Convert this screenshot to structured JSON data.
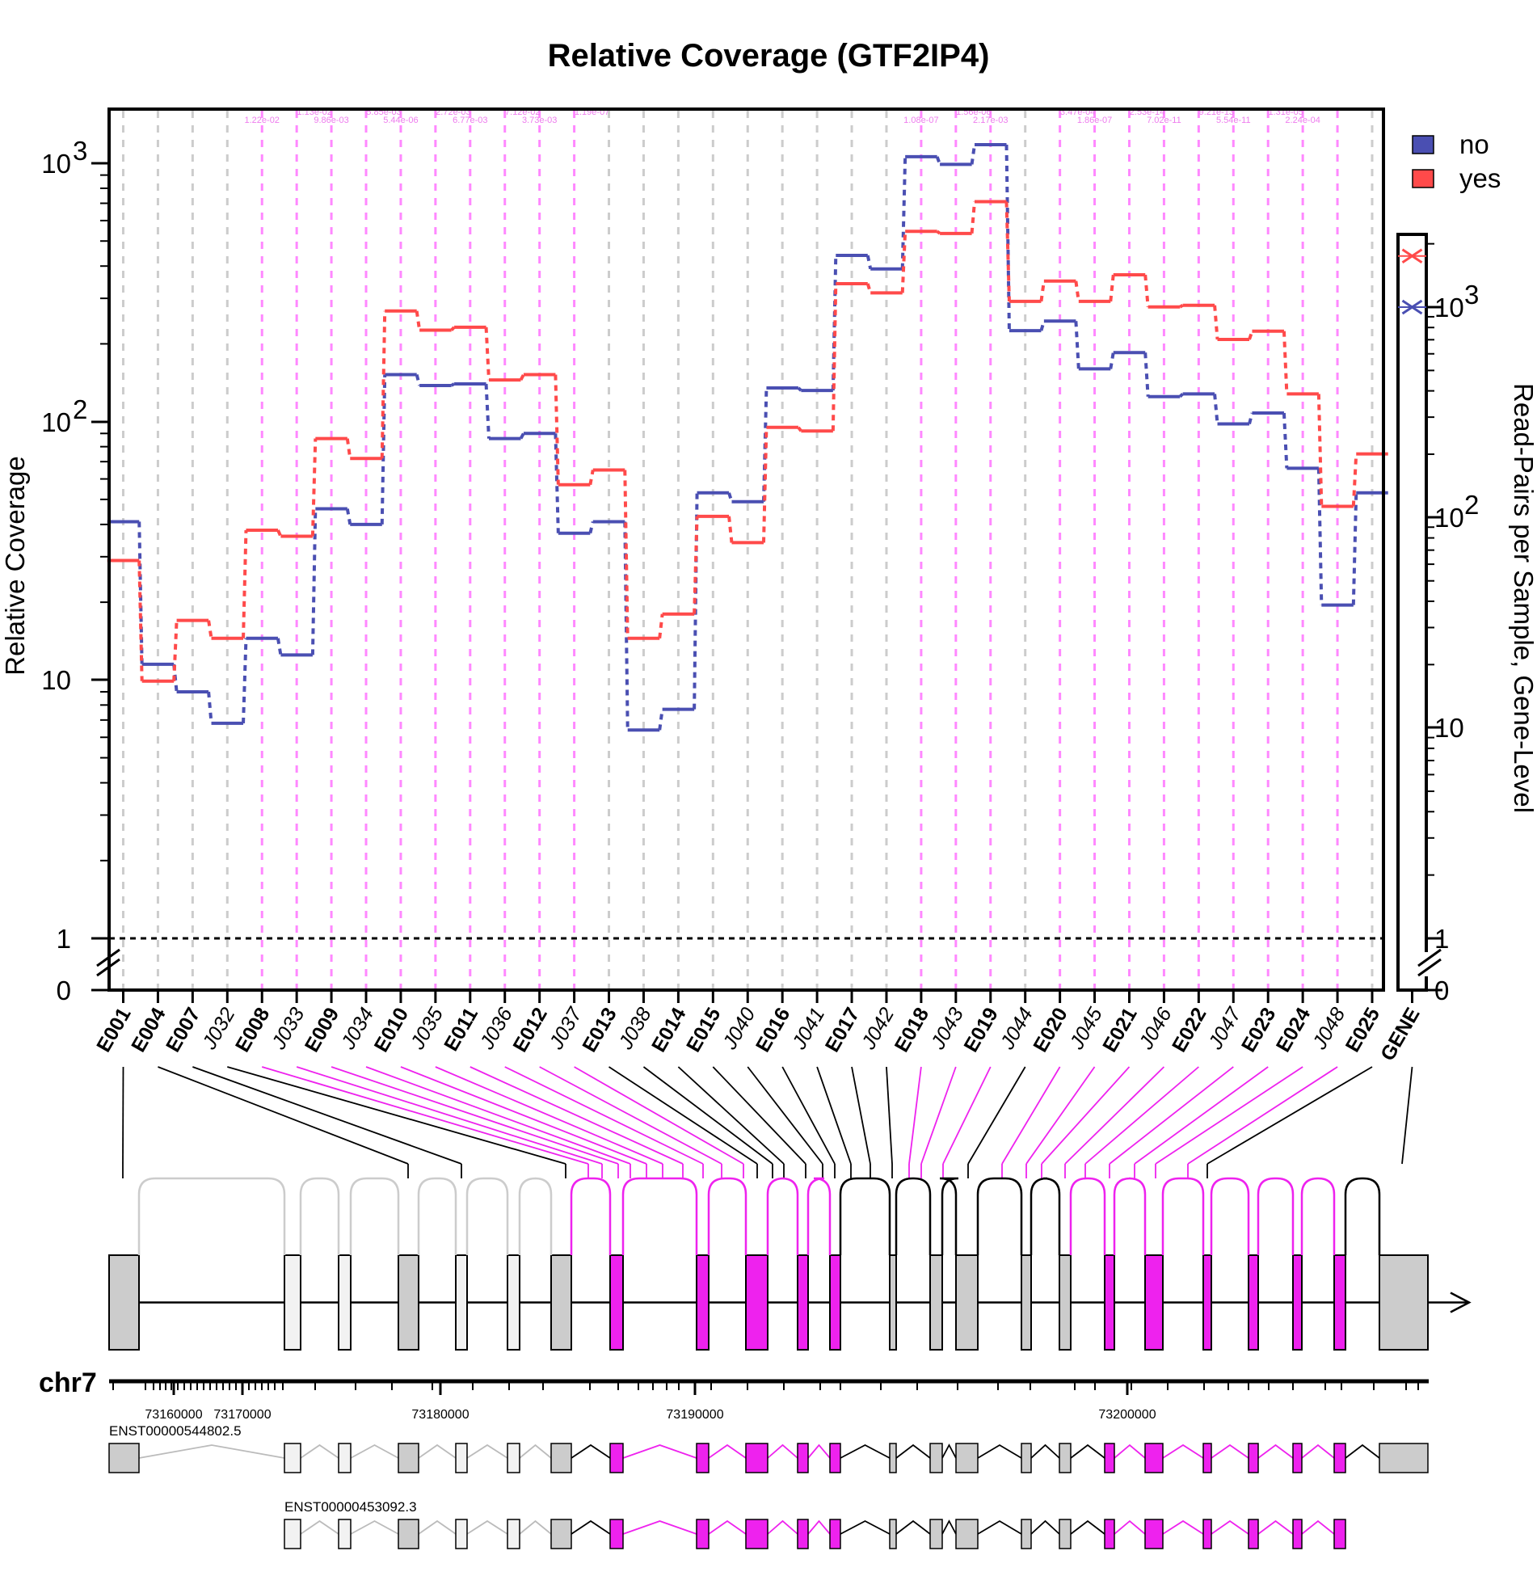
{
  "chart_data": {
    "type": "line",
    "title": "Relative Coverage (GTF2IP4)",
    "xlabel": "",
    "ylabel": "Relative Coverage",
    "y2label": "Read-Pairs per Sample, Gene-Level",
    "yscale": "log",
    "ylim": [
      1,
      1500
    ],
    "y_ticks": [
      "0",
      "1",
      "10",
      "10^2",
      "10^3"
    ],
    "y2_ticks": [
      "0",
      "1",
      "10",
      "10^2",
      "10^3"
    ],
    "categories": [
      "E001",
      "E004",
      "E007",
      "J032",
      "E008",
      "J033",
      "E009",
      "J034",
      "E010",
      "J035",
      "E011",
      "J036",
      "E012",
      "J037",
      "E013",
      "J038",
      "E014",
      "E015",
      "J040",
      "E016",
      "J041",
      "E017",
      "J042",
      "E018",
      "J043",
      "E019",
      "J044",
      "E020",
      "J045",
      "E021",
      "J046",
      "E022",
      "J047",
      "E023",
      "E024",
      "J048",
      "E025"
    ],
    "category_kind": [
      "exon",
      "exon",
      "exon",
      "junction",
      "exon",
      "junction",
      "exon",
      "junction",
      "exon",
      "junction",
      "exon",
      "junction",
      "exon",
      "junction",
      "exon",
      "junction",
      "exon",
      "exon",
      "junction",
      "exon",
      "junction",
      "exon",
      "junction",
      "exon",
      "junction",
      "exon",
      "junction",
      "exon",
      "junction",
      "exon",
      "junction",
      "exon",
      "junction",
      "exon",
      "exon",
      "junction",
      "exon"
    ],
    "significant": [
      false,
      false,
      false,
      false,
      true,
      true,
      true,
      true,
      true,
      true,
      true,
      true,
      true,
      true,
      false,
      false,
      false,
      false,
      false,
      false,
      false,
      false,
      false,
      true,
      true,
      true,
      false,
      true,
      true,
      true,
      true,
      true,
      true,
      true,
      true,
      true,
      false
    ],
    "series": [
      {
        "name": "no",
        "color": "#4a4fb2",
        "values": [
          41,
          11.5,
          9,
          6.8,
          14.5,
          12.5,
          46,
          40,
          152,
          138,
          140,
          86,
          90,
          37,
          41,
          6.4,
          7.7,
          53,
          49,
          135,
          132,
          440,
          390,
          1060,
          990,
          1180,
          225,
          245,
          160,
          185,
          125,
          128,
          98,
          108,
          66,
          19.5,
          53
        ],
        "gene_level": 1000
      },
      {
        "name": "yes",
        "color": "#ff4a4a",
        "values": [
          29,
          9.9,
          17,
          14.5,
          38,
          36,
          86,
          72,
          268,
          226,
          232,
          145,
          152,
          57,
          65,
          14.5,
          18,
          43,
          34,
          95,
          92,
          342,
          315,
          545,
          535,
          710,
          292,
          350,
          292,
          370,
          278,
          282,
          208,
          224,
          128,
          47,
          75
        ],
        "gene_level": 1750
      }
    ],
    "pvalue_labels": [
      "1.22e-02",
      "1.13e-02",
      "9.86e-03",
      "5.85e-03",
      "5.44e-06",
      "2.72e-03",
      "6.77e-03",
      "7.12e-02",
      "3.73e-03",
      "1.19e-07",
      "1.08e-07",
      "1.56e-06",
      "2.17e-03",
      "3.47e-04",
      "1.86e-07",
      "2.53e-14",
      "7.02e-11",
      "9.21e-13",
      "5.54e-11",
      "1.31e-05",
      "2.24e-04"
    ],
    "legend": [
      {
        "label": "no",
        "color": "#4a4fb2"
      },
      {
        "label": "yes",
        "color": "#ff4a4a"
      }
    ],
    "legend_position": "top-right",
    "gene_column_label": "GENE",
    "chromosome": "chr7",
    "genomic_ticks": [
      "73160000",
      "73170000",
      "73180000",
      "73190000",
      "73200000"
    ],
    "transcripts": [
      "ENST00000544802.5",
      "ENST00000453092.3"
    ],
    "colors": {
      "sig": "#ee22ee",
      "nonsig_exon": "#cccccc",
      "grid_nonsig": "#cccccc",
      "grid_sig": "#ff88ff"
    }
  }
}
